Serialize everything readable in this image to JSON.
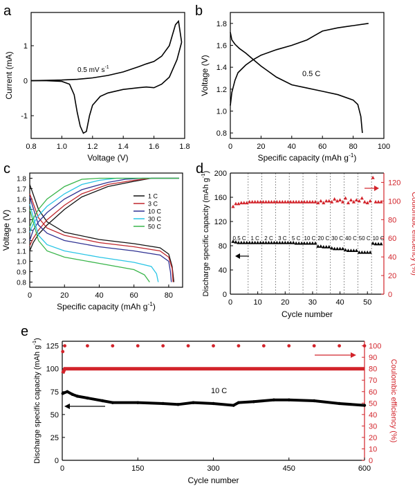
{
  "panel_letters": [
    "a",
    "b",
    "c",
    "d",
    "e"
  ],
  "colors": {
    "black": "#000000",
    "red": "#d2232a",
    "rate_1C": "#111111",
    "rate_3C": "#c0272d",
    "rate_10C": "#2e3192",
    "rate_30C": "#29c5e6",
    "rate_50C": "#39b54a"
  },
  "chart_data": [
    {
      "panel": "a",
      "type": "line",
      "xlabel": "Voltage (V)",
      "ylabel": "Current (mA)",
      "xlim": [
        0.8,
        1.8
      ],
      "ylim": [
        -1.65,
        1.95
      ],
      "xticks": [
        0.8,
        1.0,
        1.2,
        1.4,
        1.6,
        1.8
      ],
      "yticks": [
        -1,
        0,
        1
      ],
      "annotation": "0.5 mV s",
      "annotation_sup": "-1",
      "series": [
        {
          "x": [
            0.8,
            0.9,
            1.0,
            1.05,
            1.08,
            1.1,
            1.12,
            1.14,
            1.16,
            1.18,
            1.2,
            1.25,
            1.3,
            1.4,
            1.5,
            1.55,
            1.6,
            1.65,
            1.7,
            1.75,
            1.78
          ],
          "y": [
            0.0,
            0.0,
            -0.02,
            -0.1,
            -0.4,
            -0.9,
            -1.3,
            -1.5,
            -1.45,
            -1.0,
            -0.7,
            -0.45,
            -0.35,
            -0.25,
            -0.2,
            -0.18,
            -0.2,
            -0.1,
            0.1,
            0.6,
            1.1
          ]
        },
        {
          "x": [
            1.78,
            1.76,
            1.74,
            1.72,
            1.7,
            1.65,
            1.6,
            1.55,
            1.5,
            1.4,
            1.3,
            1.2,
            1.1,
            1.0,
            0.9,
            0.8
          ],
          "y": [
            1.1,
            1.7,
            1.6,
            1.3,
            1.0,
            0.7,
            0.55,
            0.48,
            0.4,
            0.25,
            0.15,
            0.08,
            0.04,
            0.02,
            0.01,
            0.0
          ]
        }
      ]
    },
    {
      "panel": "b",
      "type": "line",
      "xlabel": "Specific capacity (mAh g",
      "xlabel_sup": "-1",
      "xlabel_end": ")",
      "ylabel": "Voltage (V)",
      "xlim": [
        0,
        100
      ],
      "ylim": [
        0.75,
        1.9
      ],
      "xticks": [
        0,
        20,
        40,
        60,
        80,
        100
      ],
      "yticks": [
        0.8,
        1.0,
        1.2,
        1.4,
        1.6,
        1.8
      ],
      "annotation": "0.5 C",
      "series": [
        {
          "name": "discharge",
          "x": [
            0,
            1,
            3,
            6,
            10,
            15,
            20,
            30,
            40,
            50,
            60,
            70,
            80,
            83,
            85,
            86
          ],
          "y": [
            1.72,
            1.65,
            1.61,
            1.57,
            1.53,
            1.47,
            1.41,
            1.31,
            1.24,
            1.21,
            1.18,
            1.15,
            1.1,
            1.06,
            0.95,
            0.8
          ]
        },
        {
          "name": "charge",
          "x": [
            0,
            1,
            3,
            5,
            10,
            15,
            20,
            30,
            40,
            50,
            55,
            60,
            70,
            80,
            90
          ],
          "y": [
            1.05,
            1.17,
            1.28,
            1.35,
            1.42,
            1.47,
            1.51,
            1.56,
            1.6,
            1.65,
            1.69,
            1.73,
            1.76,
            1.78,
            1.8
          ]
        }
      ]
    },
    {
      "panel": "c",
      "type": "line",
      "xlabel": "Specific capacity (mAh g",
      "xlabel_sup": "-1",
      "xlabel_end": ")",
      "ylabel": "Voltage (V)",
      "xlim": [
        0,
        88
      ],
      "ylim": [
        0.75,
        1.85
      ],
      "xticks": [
        0,
        20,
        40,
        60,
        80
      ],
      "yticks": [
        0.8,
        0.9,
        1.0,
        1.1,
        1.2,
        1.3,
        1.4,
        1.5,
        1.6,
        1.7,
        1.8
      ],
      "legend": [
        "1 C",
        "3 C",
        "10 C",
        "30 C",
        "50 C"
      ],
      "legend_position": "right",
      "series": [
        {
          "name": "1 C",
          "discharge": {
            "x": [
              0,
              5,
              10,
              20,
              40,
              60,
              75,
              80,
              82,
              83
            ],
            "y": [
              1.74,
              1.5,
              1.38,
              1.28,
              1.21,
              1.17,
              1.13,
              1.07,
              0.95,
              0.8
            ]
          },
          "charge": {
            "x": [
              0,
              2,
              5,
              10,
              20,
              30,
              45,
              60,
              70,
              86
            ],
            "y": [
              1.1,
              1.18,
              1.26,
              1.35,
              1.5,
              1.62,
              1.72,
              1.77,
              1.8,
              1.8
            ]
          }
        },
        {
          "name": "3 C",
          "discharge": {
            "x": [
              0,
              5,
              10,
              20,
              40,
              60,
              75,
              80,
              82,
              82.5
            ],
            "y": [
              1.65,
              1.42,
              1.32,
              1.25,
              1.18,
              1.14,
              1.1,
              1.04,
              0.93,
              0.8
            ]
          },
          "charge": {
            "x": [
              0,
              2,
              5,
              10,
              20,
              30,
              45,
              60,
              70,
              86
            ],
            "y": [
              1.15,
              1.22,
              1.3,
              1.4,
              1.54,
              1.65,
              1.74,
              1.78,
              1.8,
              1.8
            ]
          }
        },
        {
          "name": "10 C",
          "discharge": {
            "x": [
              0,
              5,
              10,
              20,
              40,
              60,
              75,
              80,
              81,
              81.5
            ],
            "y": [
              1.62,
              1.35,
              1.27,
              1.2,
              1.14,
              1.1,
              1.06,
              1.0,
              0.9,
              0.8
            ]
          },
          "charge": {
            "x": [
              0,
              2,
              5,
              10,
              20,
              30,
              45,
              55,
              65,
              86
            ],
            "y": [
              1.2,
              1.3,
              1.38,
              1.47,
              1.6,
              1.69,
              1.76,
              1.79,
              1.8,
              1.8
            ]
          }
        },
        {
          "name": "30 C",
          "discharge": {
            "x": [
              0,
              5,
              10,
              20,
              40,
              60,
              70,
              73,
              74
            ],
            "y": [
              1.55,
              1.25,
              1.16,
              1.1,
              1.04,
              0.99,
              0.95,
              0.88,
              0.8
            ]
          },
          "charge": {
            "x": [
              0,
              2,
              5,
              10,
              20,
              30,
              40,
              50,
              60,
              86
            ],
            "y": [
              1.28,
              1.36,
              1.44,
              1.53,
              1.65,
              1.74,
              1.78,
              1.8,
              1.8,
              1.8
            ]
          }
        },
        {
          "name": "50 C",
          "discharge": {
            "x": [
              0,
              5,
              10,
              20,
              40,
              60,
              66,
              69
            ],
            "y": [
              1.5,
              1.2,
              1.1,
              1.04,
              0.98,
              0.92,
              0.87,
              0.8
            ]
          },
          "charge": {
            "x": [
              0,
              2,
              5,
              10,
              20,
              30,
              40,
              47,
              86
            ],
            "y": [
              1.33,
              1.41,
              1.5,
              1.6,
              1.72,
              1.79,
              1.8,
              1.8,
              1.8
            ]
          }
        }
      ]
    },
    {
      "panel": "d",
      "type": "scatter",
      "xlabel": "Cycle number",
      "ylabel": "Discharge specific capacity (mAh g",
      "ylabel_sup": "-1",
      "ylabel_end": ")",
      "y2label": "Coulombic efficiency (%)",
      "xlim": [
        0,
        56
      ],
      "ylim": [
        0,
        200
      ],
      "y2lim": [
        0,
        130
      ],
      "xticks": [
        0,
        10,
        20,
        30,
        40,
        50
      ],
      "yticks": [
        0,
        40,
        80,
        120,
        160,
        200
      ],
      "y2ticks": [
        0,
        20,
        40,
        60,
        80,
        100,
        120
      ],
      "dividers": [
        6.5,
        11.5,
        16.5,
        21.5,
        26.5,
        31.5,
        36.5,
        41.5,
        46.5,
        51.5
      ],
      "segment_labels": [
        {
          "text": "0.5 C",
          "x": 3.3
        },
        {
          "text": "1 C",
          "x": 9.0
        },
        {
          "text": "2 C",
          "x": 14.0
        },
        {
          "text": "3 C",
          "x": 19.0
        },
        {
          "text": "5 C",
          "x": 24.0
        },
        {
          "text": "10 C",
          "x": 29.0
        },
        {
          "text": "20 C",
          "x": 34.0
        },
        {
          "text": "30 C",
          "x": 39.0
        },
        {
          "text": "40 C",
          "x": 44.0
        },
        {
          "text": "50 C",
          "x": 49.0
        },
        {
          "text": "10 C",
          "x": 54.0
        }
      ],
      "series": [
        {
          "name": "capacity",
          "axis": "left",
          "x": [
            1,
            2,
            3,
            4,
            5,
            6,
            7,
            8,
            9,
            10,
            11,
            12,
            13,
            14,
            15,
            16,
            17,
            18,
            19,
            20,
            21,
            22,
            23,
            24,
            25,
            26,
            27,
            28,
            29,
            30,
            31,
            32,
            33,
            34,
            35,
            36,
            37,
            38,
            39,
            40,
            41,
            42,
            43,
            44,
            45,
            46,
            47,
            48,
            49,
            50,
            51,
            52,
            53,
            54,
            55
          ],
          "y": [
            87,
            86,
            85,
            85,
            85,
            85,
            85,
            85,
            85,
            85,
            85,
            85,
            85,
            85,
            85,
            85,
            85,
            85,
            85,
            85,
            85,
            85,
            85,
            84,
            84,
            84,
            84,
            84,
            84,
            84,
            84,
            79,
            79,
            78,
            78,
            78,
            76,
            75,
            75,
            75,
            75,
            73,
            72,
            72,
            72,
            72,
            69,
            69,
            69,
            69,
            69,
            84,
            83,
            83,
            83
          ]
        },
        {
          "name": "coulombic efficiency",
          "axis": "right",
          "x": [
            1,
            2,
            3,
            4,
            5,
            6,
            7,
            8,
            9,
            10,
            11,
            12,
            13,
            14,
            15,
            16,
            17,
            18,
            19,
            20,
            21,
            22,
            23,
            24,
            25,
            26,
            27,
            28,
            29,
            30,
            31,
            32,
            33,
            34,
            35,
            36,
            37,
            38,
            39,
            40,
            41,
            42,
            43,
            44,
            45,
            46,
            47,
            48,
            49,
            50,
            51,
            52,
            53,
            54,
            55
          ],
          "y": [
            94,
            97,
            97,
            98,
            98,
            98,
            99,
            99,
            99,
            99,
            99,
            99,
            99,
            99,
            99,
            99,
            99,
            99,
            99,
            99,
            99,
            99,
            99,
            99,
            99,
            99,
            99,
            99,
            99,
            99,
            99,
            98,
            100,
            98,
            100,
            100,
            99,
            102,
            100,
            101,
            99,
            103,
            98,
            101,
            99,
            101,
            100,
            103,
            99,
            98,
            100,
            125,
            99,
            99,
            99
          ]
        }
      ]
    },
    {
      "panel": "e",
      "type": "scatter",
      "xlabel": "Cycle number",
      "ylabel": "Discharge specific capacity (mAh g",
      "ylabel_sup": "-1",
      "ylabel_end": ")",
      "y2label": "Coulombic efficiency (%)",
      "xlim": [
        0,
        600
      ],
      "ylim": [
        0,
        130
      ],
      "y2lim": [
        0,
        104
      ],
      "xticks": [
        0,
        150,
        300,
        450,
        600
      ],
      "yticks": [
        0,
        25,
        50,
        75,
        100,
        125
      ],
      "y2ticks": [
        0,
        10,
        20,
        30,
        40,
        50,
        60,
        70,
        80,
        90,
        100
      ],
      "annotation": "10 C",
      "series": [
        {
          "name": "capacity",
          "axis": "left",
          "x": [
            1,
            10,
            20,
            30,
            50,
            80,
            100,
            150,
            200,
            230,
            260,
            300,
            340,
            350,
            380,
            420,
            450,
            500,
            550,
            600
          ],
          "y": [
            73,
            75,
            72,
            70,
            68,
            65,
            63,
            63,
            62,
            61,
            63,
            62,
            60,
            63,
            64,
            66,
            66,
            65,
            62,
            60
          ]
        },
        {
          "name": "coulombic efficiency",
          "axis": "right",
          "x": [
            1,
            5,
            50,
            100,
            150,
            200,
            250,
            300,
            350,
            400,
            450,
            500,
            550,
            600
          ],
          "y": [
            95,
            100,
            100,
            100,
            100,
            100,
            100,
            100,
            100,
            100,
            100,
            100,
            100,
            100
          ]
        }
      ]
    }
  ]
}
